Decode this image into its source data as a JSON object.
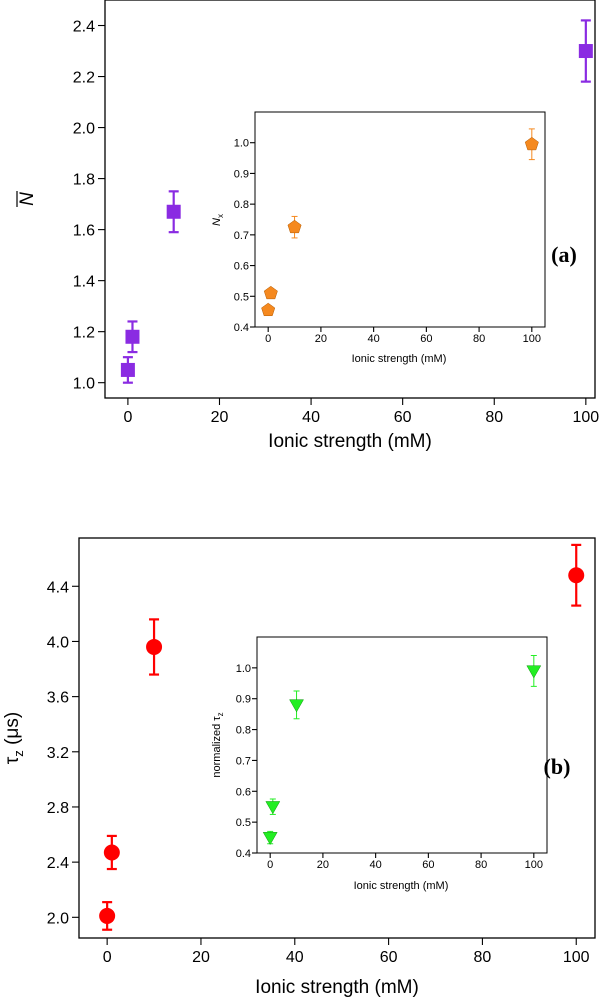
{
  "chart_data": [
    {
      "id": "a-main",
      "type": "scatter",
      "panel_label": "(a)",
      "xlabel": "Ionic strength (mM)",
      "ylabel": "N",
      "xlim": [
        -5,
        102
      ],
      "ylim": [
        0.94,
        2.5
      ],
      "xticks": [
        0,
        20,
        40,
        60,
        80,
        100
      ],
      "yticks": [
        1.0,
        1.2,
        1.4,
        1.6,
        1.8,
        2.0,
        2.2,
        2.4
      ],
      "yticks_decimals": 1,
      "marker": "square",
      "color": "#8a2be2",
      "series": [
        {
          "name": "N",
          "x": [
            0,
            1,
            10,
            100
          ],
          "y": [
            1.05,
            1.18,
            1.67,
            2.3
          ],
          "err": [
            0.05,
            0.06,
            0.08,
            0.12
          ]
        }
      ]
    },
    {
      "id": "a-inset",
      "type": "scatter",
      "xlabel": "Ionic strength (mM)",
      "ylabel": "N",
      "ylabel_sub": "x",
      "xlim": [
        -5,
        105
      ],
      "ylim": [
        0.4,
        1.1
      ],
      "xticks": [
        0,
        20,
        40,
        60,
        80,
        100
      ],
      "yticks": [
        0.4,
        0.5,
        0.6,
        0.7,
        0.8,
        0.9,
        1.0
      ],
      "yticks_decimals": 1,
      "marker": "pentagon",
      "color": "#f5891f",
      "series": [
        {
          "name": "Nx",
          "x": [
            0,
            1,
            10,
            100
          ],
          "y": [
            0.455,
            0.51,
            0.725,
            0.995
          ],
          "err": [
            0.01,
            0.012,
            0.035,
            0.05
          ]
        }
      ]
    },
    {
      "id": "b-main",
      "type": "scatter",
      "panel_label": "(b)",
      "xlabel": "Ionic strength (mM)",
      "ylabel": "τ",
      "ylabel_sub": "z",
      "ylabel_suffix": " (μs)",
      "xlim": [
        -6,
        104
      ],
      "ylim": [
        1.85,
        4.75
      ],
      "xticks": [
        0,
        20,
        40,
        60,
        80,
        100
      ],
      "yticks": [
        2.0,
        2.4,
        2.8,
        3.2,
        3.6,
        4.0,
        4.4
      ],
      "yticks_decimals": 1,
      "marker": "circle",
      "color": "#ff0000",
      "series": [
        {
          "name": "tau_z",
          "x": [
            0,
            1,
            10,
            100
          ],
          "y": [
            2.01,
            2.47,
            3.96,
            4.48
          ],
          "err": [
            0.1,
            0.12,
            0.2,
            0.22
          ]
        }
      ]
    },
    {
      "id": "b-inset",
      "type": "scatter",
      "xlabel": "Ionic strength (mM)",
      "ylabel": "normalized τ",
      "ylabel_sub": "z",
      "xlim": [
        -5,
        105
      ],
      "ylim": [
        0.4,
        1.1
      ],
      "xticks": [
        0,
        20,
        40,
        60,
        80,
        100
      ],
      "yticks": [
        0.4,
        0.5,
        0.6,
        0.7,
        0.8,
        0.9,
        1.0
      ],
      "yticks_decimals": 1,
      "marker": "triangle-down",
      "color": "#22ee22",
      "series": [
        {
          "name": "normalized tau_z",
          "x": [
            0,
            1,
            10,
            100
          ],
          "y": [
            0.45,
            0.55,
            0.88,
            0.99
          ],
          "err": [
            0.02,
            0.025,
            0.045,
            0.05
          ]
        }
      ]
    }
  ]
}
